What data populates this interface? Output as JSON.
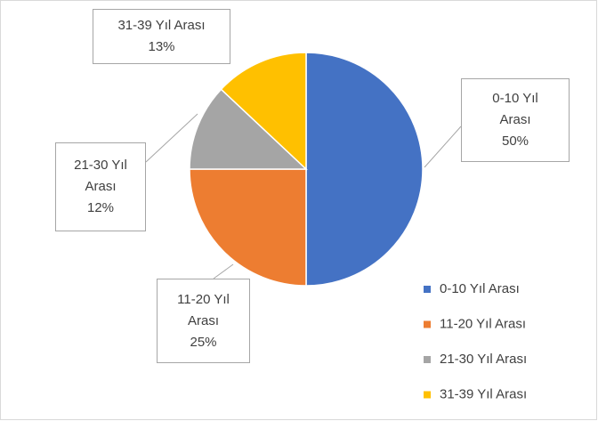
{
  "chart_data": {
    "type": "pie",
    "categories": [
      "0-10 Yıl Arası",
      "11-20 Yıl Arası",
      "21-30 Yıl Arası",
      "31-39 Yıl Arası"
    ],
    "values": [
      50,
      25,
      12,
      13
    ],
    "value_labels": [
      "50%",
      "25%",
      "12%",
      "13%"
    ],
    "colors": [
      "#4472c4",
      "#ed7d31",
      "#a5a5a5",
      "#ffc000"
    ],
    "legend": "bottom-right"
  }
}
